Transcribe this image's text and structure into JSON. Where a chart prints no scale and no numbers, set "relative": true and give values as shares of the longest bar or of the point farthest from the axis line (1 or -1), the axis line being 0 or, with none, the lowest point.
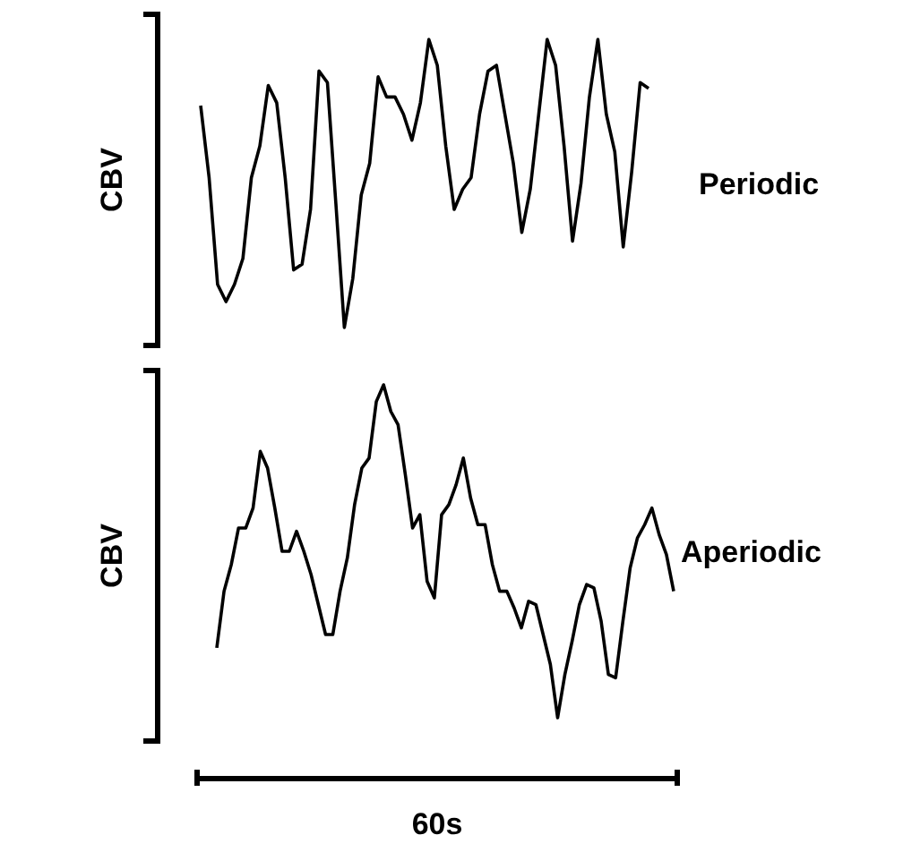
{
  "chart_data": [
    {
      "type": "line",
      "relative": true,
      "ylabel": "CBV",
      "categories": [
        null,
        null,
        null,
        null,
        null,
        null,
        null,
        null,
        null,
        null,
        null,
        null,
        null,
        null,
        null,
        null,
        null,
        null,
        null,
        null,
        null,
        null,
        null,
        null,
        null,
        null,
        null,
        null,
        null,
        null,
        null,
        null,
        null,
        null,
        null,
        null,
        null,
        null,
        null,
        null,
        null,
        null,
        null,
        null,
        null,
        null,
        null,
        null,
        null,
        null,
        null,
        null,
        null,
        null
      ],
      "series": [
        {
          "name": "Periodic",
          "color": "#000000",
          "values": [
            0.77,
            0.52,
            0.15,
            0.09,
            0.15,
            0.24,
            0.52,
            0.63,
            0.84,
            0.78,
            0.52,
            0.2,
            0.22,
            0.41,
            0.89,
            0.85,
            0.43,
            0,
            0.17,
            0.46,
            0.57,
            0.87,
            0.8,
            0.8,
            0.74,
            0.65,
            0.78,
            1,
            0.91,
            0.63,
            0.41,
            0.48,
            0.52,
            0.74,
            0.89,
            0.91,
            0.74,
            0.57,
            0.33,
            0.48,
            0.74,
            1,
            0.91,
            0.63,
            0.3,
            0.5,
            0.8,
            1,
            0.74,
            0.61,
            0.28,
            0.54,
            0.85,
            0.83
          ]
        }
      ]
    },
    {
      "type": "line",
      "relative": true,
      "ylabel": "CBV",
      "annotations": [
        "60s"
      ],
      "categories": [
        null,
        null,
        null,
        null,
        null,
        null,
        null,
        null,
        null,
        null,
        null,
        null,
        null,
        null,
        null,
        null,
        null,
        null,
        null,
        null,
        null,
        null,
        null,
        null,
        null,
        null,
        null,
        null,
        null,
        null,
        null,
        null,
        null,
        null,
        null,
        null,
        null,
        null,
        null,
        null,
        null,
        null,
        null,
        null,
        null,
        null,
        null,
        null,
        null,
        null,
        null,
        null,
        null,
        null,
        null,
        null,
        null,
        null,
        null,
        null,
        null,
        null,
        null,
        null
      ],
      "series": [
        {
          "name": "Aperiodic",
          "color": "#000000",
          "values": [
            0.21,
            0.38,
            0.46,
            0.57,
            0.57,
            0.63,
            0.8,
            0.75,
            0.63,
            0.5,
            0.5,
            0.56,
            0.5,
            0.43,
            0.34,
            0.25,
            0.25,
            0.38,
            0.48,
            0.64,
            0.75,
            0.78,
            0.95,
            1,
            0.92,
            0.88,
            0.73,
            0.57,
            0.61,
            0.41,
            0.36,
            0.61,
            0.64,
            0.7,
            0.78,
            0.66,
            0.58,
            0.58,
            0.46,
            0.38,
            0.38,
            0.33,
            0.27,
            0.35,
            0.34,
            0.25,
            0.16,
            0,
            0.13,
            0.23,
            0.34,
            0.4,
            0.39,
            0.29,
            0.13,
            0.12,
            0.29,
            0.45,
            0.54,
            0.58,
            0.63,
            0.55,
            0.49,
            0.38
          ]
        }
      ]
    }
  ]
}
